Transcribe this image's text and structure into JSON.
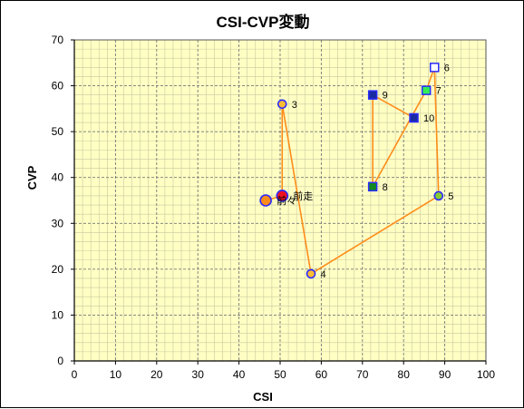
{
  "chart_data": {
    "type": "scatter",
    "title": "CSI-CVP変動",
    "xlabel": "CSI",
    "ylabel": "CVP",
    "xlim": [
      0,
      100
    ],
    "ylim": [
      0,
      70
    ],
    "x_ticks": [
      "0",
      "10",
      "20",
      "30",
      "40",
      "50",
      "60",
      "70",
      "80",
      "90",
      "100"
    ],
    "y_ticks": [
      "0",
      "10",
      "20",
      "30",
      "40",
      "50",
      "60",
      "70"
    ],
    "grid": true,
    "minor_grid": true,
    "background_color": "#ffffc4",
    "line_color": "#ff8c1a",
    "points": [
      {
        "label": "前々",
        "x": 46.5,
        "y": 35,
        "shape": "circle",
        "fill": "#ff8c1a",
        "stroke": "#2a2aff",
        "size": 6
      },
      {
        "label": "前走",
        "x": 50.5,
        "y": 36,
        "shape": "circle",
        "fill": "#ee1122",
        "stroke": "#2a2aff",
        "size": 6
      },
      {
        "label": "3",
        "x": 50.5,
        "y": 56,
        "shape": "circle",
        "fill": "#ffbb33",
        "stroke": "#2a2aff",
        "size": 4.5
      },
      {
        "label": "4",
        "x": 57.5,
        "y": 19,
        "shape": "circle",
        "fill": "#ffbb33",
        "stroke": "#2a2aff",
        "size": 4.5
      },
      {
        "label": "5",
        "x": 88.5,
        "y": 36,
        "shape": "circle",
        "fill": "#88cc33",
        "stroke": "#2a2aff",
        "size": 4.5
      },
      {
        "label": "6",
        "x": 87.5,
        "y": 64,
        "shape": "square",
        "fill": "#ffffff",
        "stroke": "#2a2aff",
        "size": 4.5
      },
      {
        "label": "7",
        "x": 85.5,
        "y": 59,
        "shape": "square",
        "fill": "#33ee55",
        "stroke": "#2a2aff",
        "size": 4.5
      },
      {
        "label": "8",
        "x": 72.5,
        "y": 38,
        "shape": "square",
        "fill": "#118822",
        "stroke": "#2a2aff",
        "size": 4.5
      },
      {
        "label": "9",
        "x": 72.5,
        "y": 58,
        "shape": "square",
        "fill": "#1a2aa0",
        "stroke": "#2a2aff",
        "size": 4.5
      },
      {
        "label": "10",
        "x": 82.5,
        "y": 53,
        "shape": "square",
        "fill": "#1a2aa0",
        "stroke": "#2a2aff",
        "size": 4.5
      }
    ]
  }
}
